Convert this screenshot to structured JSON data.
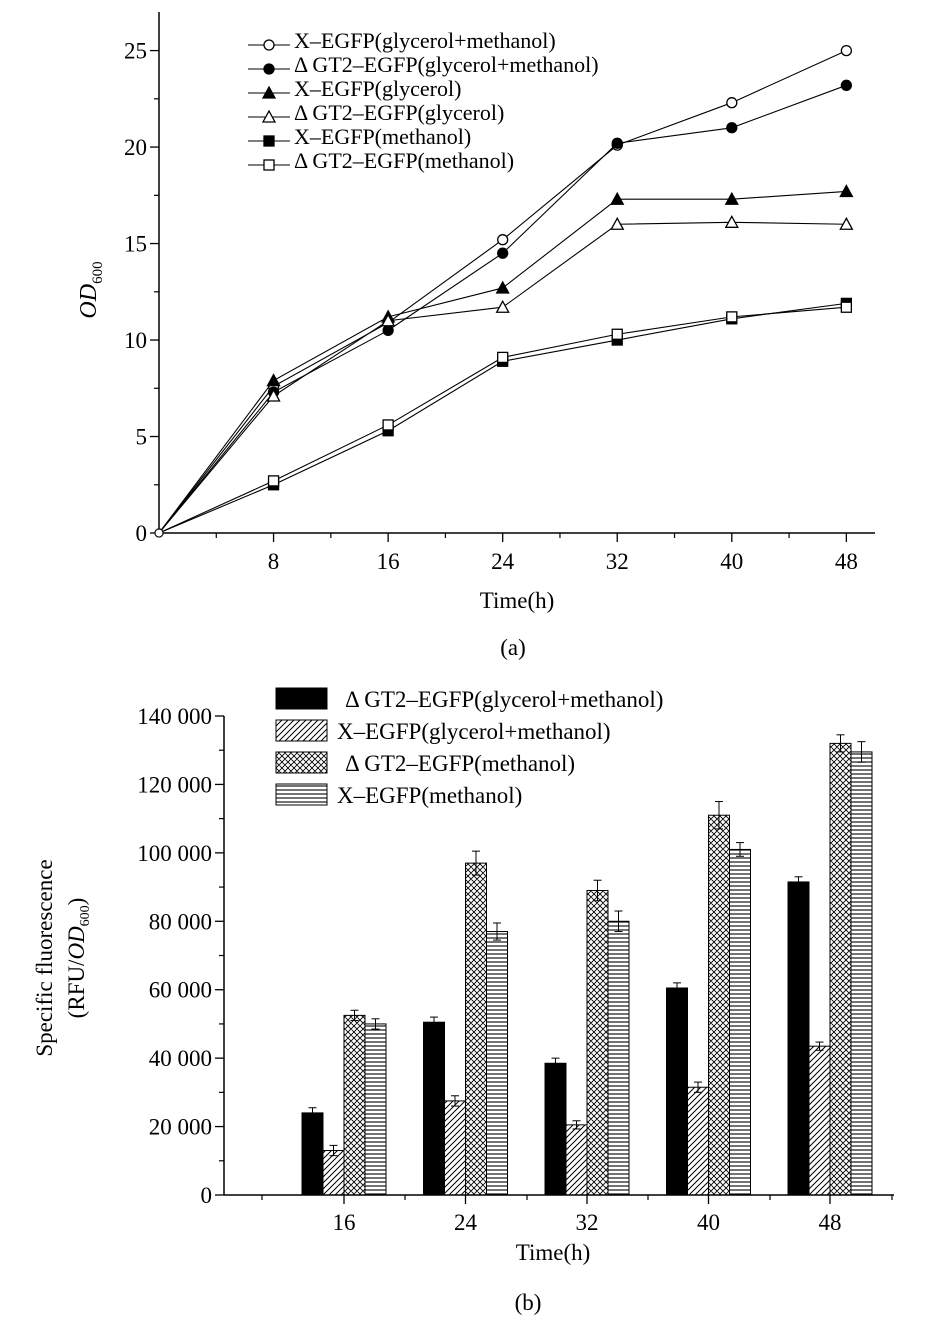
{
  "chart_data": [
    {
      "type": "line",
      "panel_label": "(a)",
      "xlabel": "Time(h)",
      "ylabel": "OD",
      "ylabel_sub": "600",
      "xlim": [
        0,
        50
      ],
      "ylim": [
        0,
        27
      ],
      "x_ticks": [
        8,
        16,
        24,
        32,
        40,
        48
      ],
      "y_ticks": [
        0,
        5,
        10,
        15,
        20,
        25
      ],
      "x": [
        0,
        8,
        16,
        24,
        32,
        40,
        48
      ],
      "series": [
        {
          "name": "X–EGFP(glycerol+methanol)",
          "marker": "open-circle",
          "values": [
            0,
            7.6,
            10.9,
            15.2,
            20.1,
            22.3,
            25.0
          ]
        },
        {
          "name": "Δ GT2–EGFP(glycerol+methanol)",
          "marker": "filled-circle",
          "values": [
            0,
            7.3,
            10.5,
            14.5,
            20.2,
            21.0,
            23.2
          ]
        },
        {
          "name": "X–EGFP(glycerol)",
          "marker": "filled-triangle",
          "values": [
            0,
            7.9,
            11.2,
            12.7,
            17.3,
            17.3,
            17.7
          ]
        },
        {
          "name": "Δ GT2–EGFP(glycerol)",
          "marker": "open-triangle",
          "values": [
            0,
            7.1,
            11.0,
            11.7,
            16.0,
            16.1,
            16.0
          ]
        },
        {
          "name": "X–EGFP(methanol)",
          "marker": "filled-square",
          "values": [
            0,
            2.5,
            5.3,
            8.9,
            10.0,
            11.1,
            11.9
          ]
        },
        {
          "name": "Δ GT2–EGFP(methanol)",
          "marker": "open-square",
          "values": [
            0,
            2.7,
            5.6,
            9.1,
            10.3,
            11.2,
            11.7
          ]
        }
      ]
    },
    {
      "type": "bar",
      "panel_label": "(b)",
      "xlabel": "Time(h)",
      "ylabel_line1": "Specific fluorescence",
      "ylabel_line2_prefix": "(RFU/",
      "ylabel_line2_italic": "OD",
      "ylabel_line2_sub": "600",
      "ylabel_line2_suffix": ")",
      "ylim": [
        0,
        140000
      ],
      "y_ticks": [
        0,
        20000,
        40000,
        60000,
        80000,
        100000,
        120000,
        140000
      ],
      "y_tick_labels": [
        "0",
        "20 000",
        "40 000",
        "60 000",
        "80 000",
        "100 000",
        "120 000",
        "140 000"
      ],
      "categories": [
        "16",
        "24",
        "32",
        "40",
        "48"
      ],
      "series": [
        {
          "name": "Δ GT2–EGFP(glycerol+methanol)",
          "pattern": "solid",
          "values": [
            24000,
            50500,
            38500,
            60500,
            91500
          ],
          "errors": [
            1500,
            1500,
            1500,
            1500,
            1500
          ]
        },
        {
          "name": "X–EGFP(glycerol+methanol)",
          "pattern": "diagonal",
          "values": [
            13000,
            27500,
            20500,
            31500,
            43500
          ],
          "errors": [
            1500,
            1500,
            1200,
            1500,
            1200
          ]
        },
        {
          "name": "Δ GT2–EGFP(methanol)",
          "pattern": "crosshatch",
          "values": [
            52500,
            97000,
            89000,
            111000,
            132000
          ],
          "errors": [
            1500,
            3500,
            3000,
            4000,
            2500
          ]
        },
        {
          "name": "X–EGFP(methanol)",
          "pattern": "horizontal",
          "values": [
            50000,
            77000,
            80000,
            101000,
            129500
          ],
          "errors": [
            1500,
            2500,
            3000,
            2000,
            3000
          ]
        }
      ]
    }
  ]
}
